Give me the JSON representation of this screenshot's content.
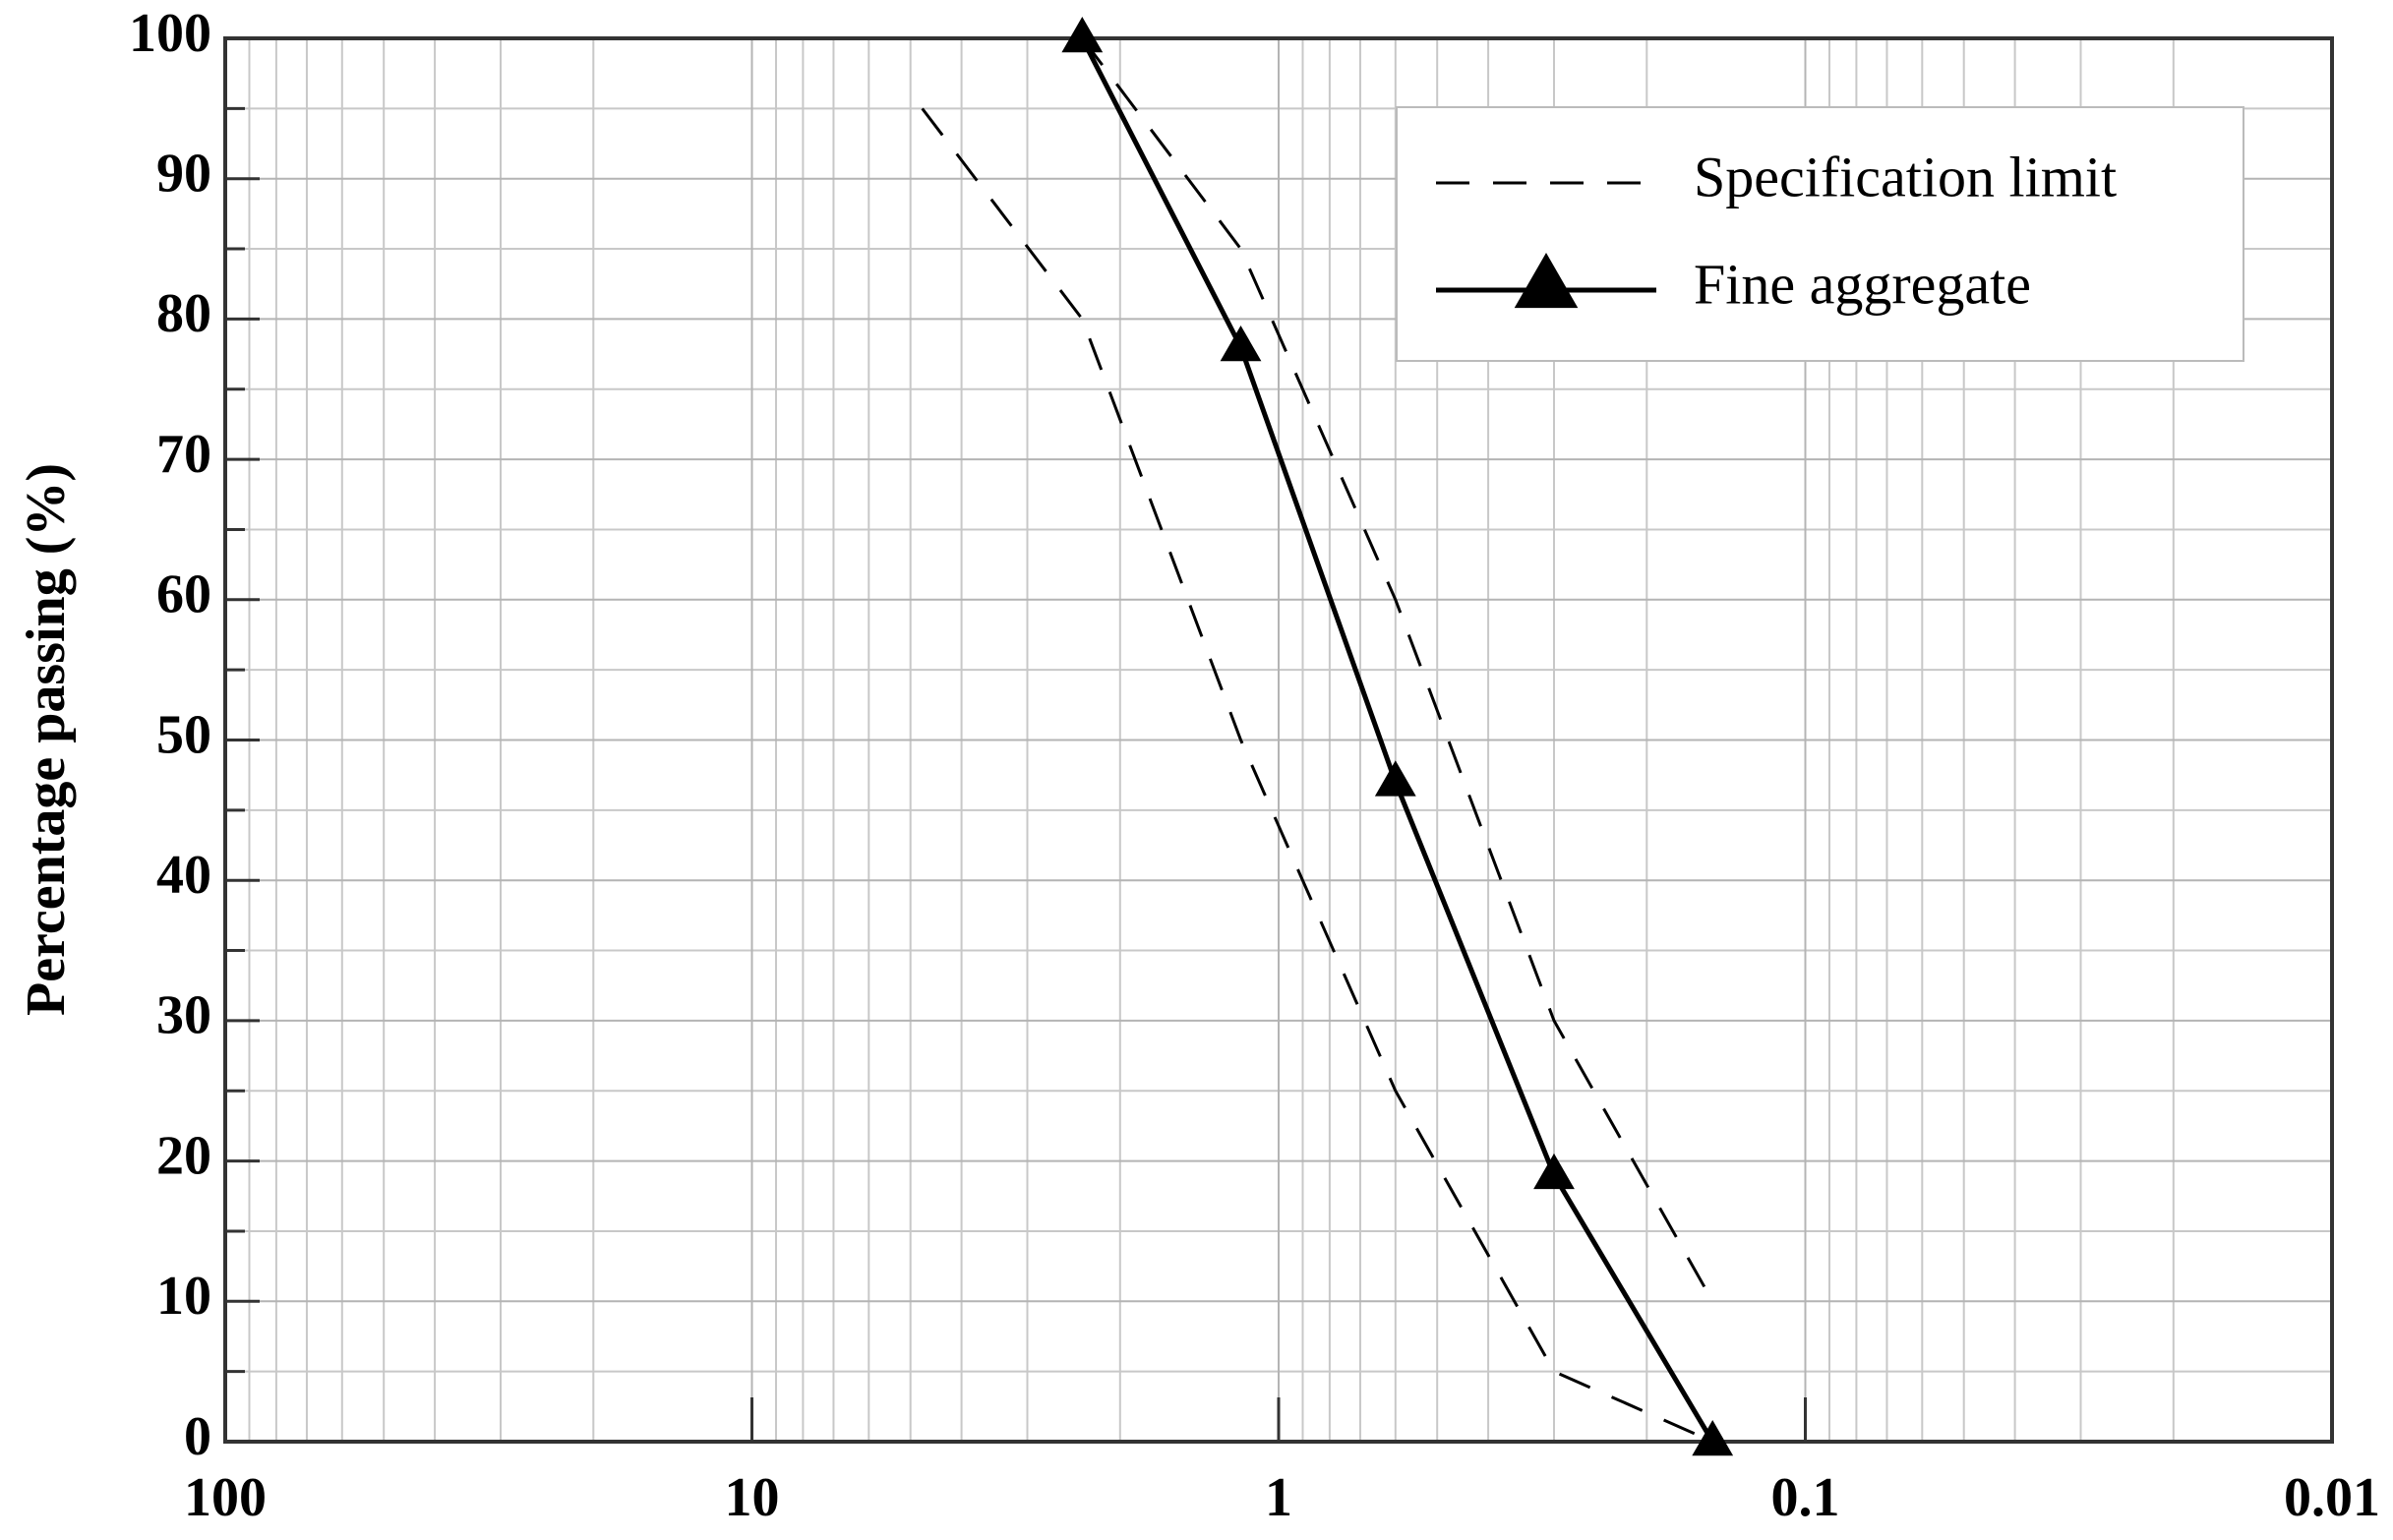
{
  "chart_data": {
    "type": "line",
    "y_label": "Percentage passing (%)",
    "xscale": "log",
    "xlim": [
      100,
      0.01
    ],
    "xticks": [
      100,
      10,
      1,
      0.1,
      0.01
    ],
    "ylim": [
      0,
      100
    ],
    "yticks": [
      0,
      10,
      20,
      30,
      40,
      50,
      60,
      70,
      80,
      90,
      100
    ],
    "grid": true,
    "legend": "upper right",
    "series": [
      {
        "name": "Specification limit",
        "color": "#000000",
        "style": "dashed",
        "lines": [
          {
            "x": [
              4.75,
              2.36,
              1.18,
              0.6,
              0.3,
              0.15
            ],
            "values": [
              95,
              80,
              50,
              25,
              5,
              0
            ]
          },
          {
            "x": [
              2.36,
              1.18,
              0.6,
              0.3,
              0.15
            ],
            "values": [
              100,
              85,
              60,
              30,
              10
            ]
          }
        ]
      },
      {
        "name": "Fine aggregate",
        "color": "#000000",
        "style": "solid",
        "marker": "triangle",
        "x": [
          2.36,
          1.18,
          0.6,
          0.3,
          0.15
        ],
        "values": [
          100,
          78,
          47,
          19,
          0
        ]
      }
    ]
  }
}
